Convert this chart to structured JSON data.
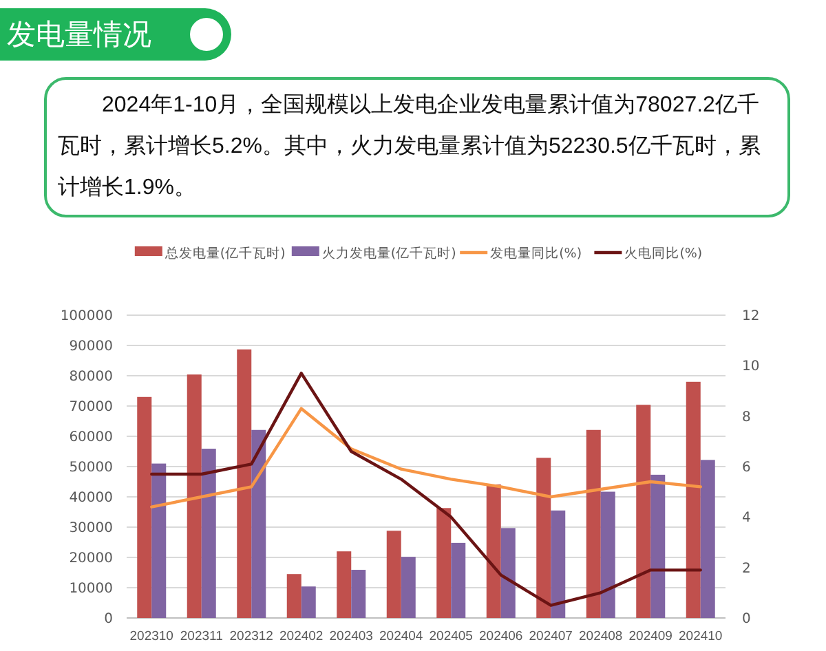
{
  "chart_data": {
    "type": "bar",
    "title": "发电量情况",
    "subtitle": "2024年1-10月，全国规模以上发电企业发电量累计值为78027.2亿千瓦时，累计增长5.2%。其中，火力发电量累计值为52230.5亿千瓦时，累计增长1.9%。",
    "categories": [
      "202310",
      "202311",
      "202312",
      "202402",
      "202403",
      "202404",
      "202405",
      "202406",
      "202407",
      "202408",
      "202409",
      "202410"
    ],
    "series": [
      {
        "name": "总发电量(亿千瓦时)",
        "color": "#c0504d",
        "values": [
          73000,
          80400,
          88700,
          14500,
          22000,
          28800,
          36300,
          44100,
          52900,
          62100,
          70400,
          78000
        ]
      },
      {
        "name": "火力发电量(亿千瓦时)",
        "color": "#8064a2",
        "values": [
          51000,
          55900,
          62100,
          10400,
          15900,
          20200,
          24800,
          29700,
          35500,
          41700,
          47300,
          52200
        ]
      },
      {
        "name": "发电量同比(%)",
        "type": "line",
        "axis": "y2",
        "color": "#f79646",
        "values": [
          4.4,
          4.8,
          5.2,
          8.3,
          6.7,
          5.9,
          5.5,
          5.2,
          4.8,
          5.1,
          5.4,
          5.2
        ]
      },
      {
        "name": "火电同比(%)",
        "type": "line",
        "axis": "y2",
        "color": "#6b1414",
        "values": [
          5.7,
          5.7,
          6.1,
          9.7,
          6.6,
          5.5,
          4.0,
          1.7,
          0.5,
          1.0,
          1.9,
          1.9
        ]
      }
    ],
    "ylim": [
      0,
      100000
    ],
    "yticks": [
      0,
      10000,
      20000,
      30000,
      40000,
      50000,
      60000,
      70000,
      80000,
      90000,
      100000
    ],
    "y2lim": [
      0,
      12
    ],
    "y2ticks": [
      0,
      2,
      4,
      6,
      8,
      10,
      12
    ],
    "grid": "y",
    "legend": "top"
  }
}
